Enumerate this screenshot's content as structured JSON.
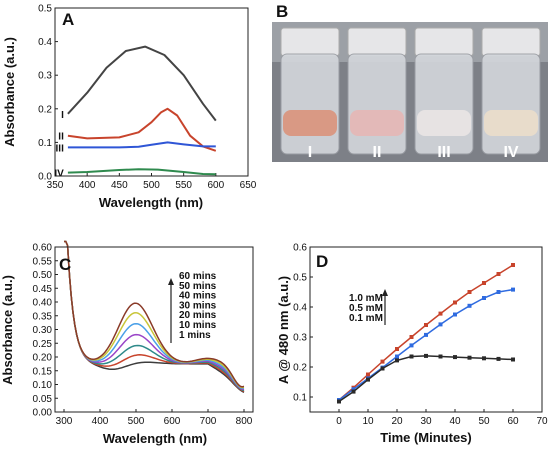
{
  "chart_data": [
    {
      "panel": "A",
      "type": "line",
      "xlabel": "Wavelength (nm)",
      "ylabel": "Absorbance (a.u.)",
      "xlim": [
        350,
        650
      ],
      "ylim": [
        0,
        0.5
      ],
      "xticks": [
        "350",
        "400",
        "450",
        "500",
        "550",
        "600",
        "650"
      ],
      "yticks": [
        "0.0",
        "0.1",
        "0.2",
        "0.3",
        "0.4",
        "0.5"
      ],
      "series": [
        {
          "name": "I",
          "color": "#444444",
          "x": [
            370,
            400,
            430,
            460,
            490,
            520,
            550,
            580,
            600
          ],
          "y": [
            0.185,
            0.248,
            0.322,
            0.372,
            0.385,
            0.36,
            0.3,
            0.215,
            0.165
          ]
        },
        {
          "name": "II",
          "color": "#c8442c",
          "x": [
            370,
            400,
            450,
            480,
            500,
            515,
            525,
            540,
            560,
            580,
            600
          ],
          "y": [
            0.12,
            0.112,
            0.115,
            0.13,
            0.16,
            0.19,
            0.2,
            0.18,
            0.12,
            0.088,
            0.075
          ]
        },
        {
          "name": "III",
          "color": "#2f56d6",
          "x": [
            370,
            400,
            450,
            480,
            500,
            525,
            550,
            580,
            600
          ],
          "y": [
            0.085,
            0.085,
            0.085,
            0.087,
            0.093,
            0.1,
            0.094,
            0.088,
            0.088
          ]
        },
        {
          "name": "IV",
          "color": "#2f8a4e",
          "x": [
            370,
            400,
            450,
            480,
            510,
            550,
            580,
            600
          ],
          "y": [
            0.01,
            0.012,
            0.018,
            0.02,
            0.019,
            0.012,
            0.006,
            0.005
          ]
        }
      ]
    },
    {
      "panel": "B",
      "type": "photo",
      "vial_labels": [
        "I",
        "II",
        "III",
        "IV"
      ],
      "liquid_colors": [
        "#d99984",
        "#e3b9b8",
        "#e7e3e3",
        "#e8dccb"
      ]
    },
    {
      "panel": "C",
      "type": "line",
      "xlabel": "Wavelength (nm)",
      "ylabel": "Absorbance (a.u.)",
      "xlim": [
        275,
        825
      ],
      "ylim": [
        0.0,
        0.6
      ],
      "xticks": [
        "300",
        "400",
        "500",
        "600",
        "700",
        "800"
      ],
      "yticks": [
        "0.00",
        "0.05",
        "0.10",
        "0.15",
        "0.20",
        "0.25",
        "0.30",
        "0.35",
        "0.40",
        "0.45",
        "0.50",
        "0.55",
        "0.60"
      ],
      "legend": [
        "60 mins",
        "50 mins",
        "40 mins",
        "30 mins",
        "20 mins",
        "10 mins",
        "1 mins"
      ],
      "series": [
        {
          "time_min": 1,
          "color": "#3d3d3d",
          "peak": 0.17
        },
        {
          "time_min": 10,
          "color": "#c8442c",
          "peak": 0.2
        },
        {
          "time_min": 20,
          "color": "#2e8a8a",
          "peak": 0.235
        },
        {
          "time_min": 30,
          "color": "#9a45c8",
          "peak": 0.275
        },
        {
          "time_min": 40,
          "color": "#4aa0e8",
          "peak": 0.315
        },
        {
          "time_min": 50,
          "color": "#c9c63a",
          "peak": 0.355
        },
        {
          "time_min": 60,
          "color": "#8a3a28",
          "peak": 0.39
        }
      ]
    },
    {
      "panel": "D",
      "type": "line",
      "xlabel": "Time (Minutes)",
      "ylabel": "A @ 480 nm (a.u.)",
      "xlim": [
        -10,
        70
      ],
      "ylim": [
        0.05,
        0.6
      ],
      "xticks": [
        "0",
        "10",
        "20",
        "30",
        "40",
        "50",
        "60",
        "70"
      ],
      "yticks": [
        "0.1",
        "0.2",
        "0.3",
        "0.4",
        "0.5",
        "0.6"
      ],
      "legend": [
        "1.0 mM",
        "0.5 mM",
        "0.1 mM"
      ],
      "x": [
        0,
        5,
        10,
        15,
        20,
        25,
        30,
        35,
        40,
        45,
        50,
        55,
        60
      ],
      "series": [
        {
          "name": "1.0 mM",
          "color": "#c8442c",
          "values": [
            0.09,
            0.131,
            0.175,
            0.218,
            0.26,
            0.3,
            0.34,
            0.378,
            0.415,
            0.45,
            0.48,
            0.51,
            0.54
          ]
        },
        {
          "name": "0.5 mM",
          "color": "#2f6be0",
          "values": [
            0.09,
            0.126,
            0.162,
            0.198,
            0.235,
            0.272,
            0.307,
            0.342,
            0.375,
            0.404,
            0.43,
            0.45,
            0.458
          ]
        },
        {
          "name": "0.1 mM",
          "color": "#2a2a2a",
          "values": [
            0.085,
            0.118,
            0.158,
            0.195,
            0.222,
            0.235,
            0.237,
            0.235,
            0.233,
            0.231,
            0.229,
            0.227,
            0.225
          ]
        }
      ]
    }
  ]
}
